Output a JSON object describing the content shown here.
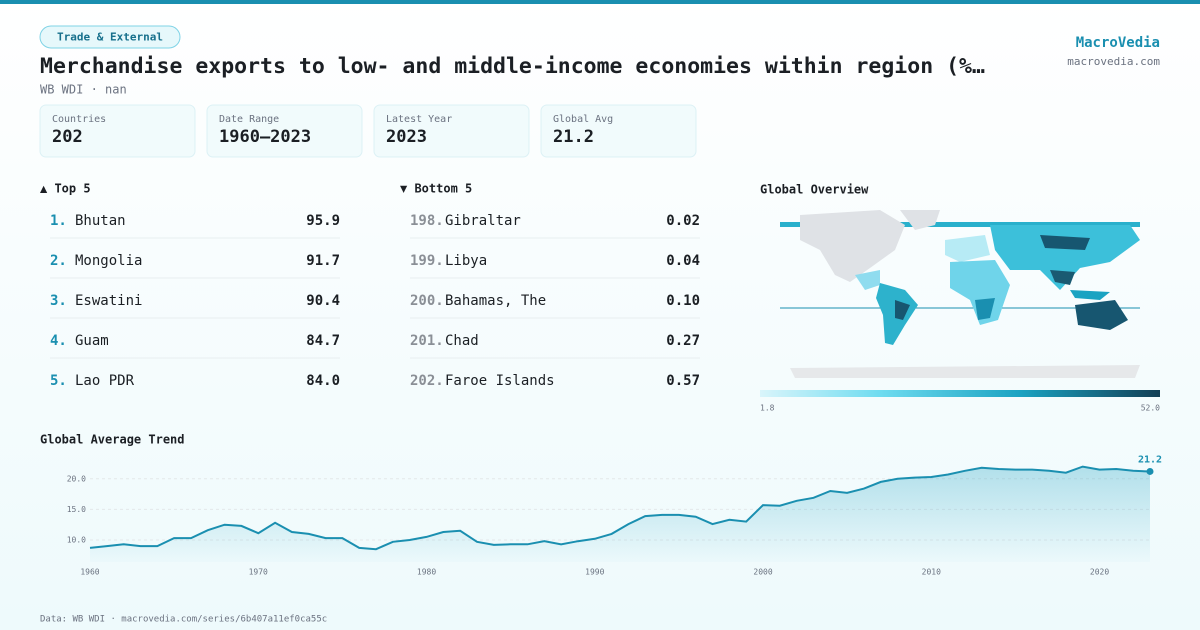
{
  "header": {
    "tag": "Trade & External",
    "title": "Merchandise exports to low- and middle-income economies within region (%…",
    "subtitle": "WB WDI · nan",
    "brand": "MacroVedia",
    "site": "macrovedia.com"
  },
  "stats": [
    {
      "label": "Countries",
      "value": "202"
    },
    {
      "label": "Date Range",
      "value": "1960–2023"
    },
    {
      "label": "Latest Year",
      "value": "2023"
    },
    {
      "label": "Global Avg",
      "value": "21.2"
    }
  ],
  "top": {
    "title": "▲ Top 5",
    "rows": [
      {
        "rank": "1.",
        "name": "Bhutan",
        "value": "95.9"
      },
      {
        "rank": "2.",
        "name": "Mongolia",
        "value": "91.7"
      },
      {
        "rank": "3.",
        "name": "Eswatini",
        "value": "90.4"
      },
      {
        "rank": "4.",
        "name": "Guam",
        "value": "84.7"
      },
      {
        "rank": "5.",
        "name": "Lao PDR",
        "value": "84.0"
      }
    ]
  },
  "bottom": {
    "title": "▼ Bottom 5",
    "rows": [
      {
        "rank": "198.",
        "name": "Gibraltar",
        "value": "0.02"
      },
      {
        "rank": "199.",
        "name": "Libya",
        "value": "0.04"
      },
      {
        "rank": "200.",
        "name": "Bahamas, The",
        "value": "0.10"
      },
      {
        "rank": "201.",
        "name": "Chad",
        "value": "0.27"
      },
      {
        "rank": "202.",
        "name": "Faroe Islands",
        "value": "0.57"
      }
    ]
  },
  "map": {
    "title": "Global Overview",
    "scale_min": "1.8",
    "scale_max": "52.0"
  },
  "chart_data": {
    "type": "line",
    "title": "Global Average Trend",
    "color": "#1a8fb0",
    "x": [
      1960,
      1961,
      1962,
      1963,
      1964,
      1965,
      1966,
      1967,
      1968,
      1969,
      1970,
      1971,
      1972,
      1973,
      1974,
      1975,
      1976,
      1977,
      1978,
      1979,
      1980,
      1981,
      1982,
      1983,
      1984,
      1985,
      1986,
      1987,
      1988,
      1989,
      1990,
      1991,
      1992,
      1993,
      1994,
      1995,
      1996,
      1997,
      1998,
      1999,
      2000,
      2001,
      2002,
      2003,
      2004,
      2005,
      2006,
      2007,
      2008,
      2009,
      2010,
      2011,
      2012,
      2013,
      2014,
      2015,
      2016,
      2017,
      2018,
      2019,
      2020,
      2021,
      2022,
      2023
    ],
    "values": [
      8.7,
      9.0,
      9.3,
      9.0,
      9.0,
      10.3,
      10.3,
      11.6,
      12.5,
      12.3,
      11.1,
      12.8,
      11.3,
      11.0,
      10.3,
      10.3,
      8.7,
      8.5,
      9.7,
      10.0,
      10.5,
      11.3,
      11.5,
      9.7,
      9.2,
      9.3,
      9.3,
      9.8,
      9.3,
      9.8,
      10.2,
      11.0,
      12.6,
      13.9,
      14.1,
      14.1,
      13.8,
      12.6,
      13.3,
      13.0,
      15.7,
      15.6,
      16.4,
      16.9,
      18.0,
      17.7,
      18.4,
      19.5,
      20.0,
      20.2,
      20.3,
      20.7,
      21.3,
      21.8,
      21.6,
      21.5,
      21.5,
      21.3,
      21.0,
      22.0,
      21.5,
      21.6,
      21.3,
      21.2
    ],
    "xlim": [
      1960,
      2023
    ],
    "xticks": [
      1960,
      1970,
      1980,
      1990,
      2000,
      2010,
      2020
    ],
    "ylim": [
      6.4,
      23.4
    ],
    "yticks": [
      {
        "value": 10,
        "label": "10.0"
      },
      {
        "value": 15,
        "label": "15.0"
      },
      {
        "value": 20,
        "label": "20.0"
      }
    ],
    "grid": true
  },
  "footer": "Data: WB WDI · macrovedia.com/series/6b407a11ef0ca55c"
}
